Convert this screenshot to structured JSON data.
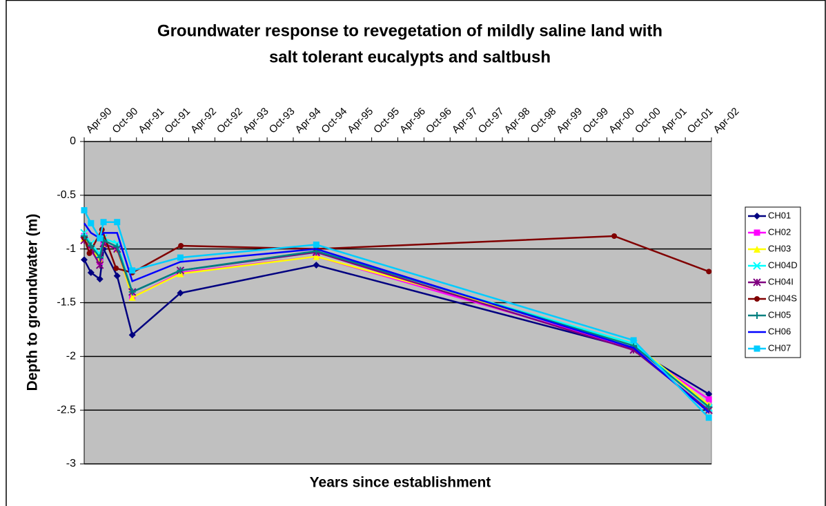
{
  "chart_data": {
    "type": "line",
    "title": [
      "Groundwater response to revegetation of mildly saline land with",
      "salt tolerant eucalypts and saltbush"
    ],
    "x_label": "Years since establishment",
    "y_label": "Depth to groundwater (m)",
    "xlim": [
      1990.25,
      2002.25
    ],
    "xticks": [
      {
        "value": 1990.25,
        "label": "Apr-90"
      },
      {
        "value": 1990.75,
        "label": "Oct-90"
      },
      {
        "value": 1991.25,
        "label": "Apr-91"
      },
      {
        "value": 1991.75,
        "label": "Oct-91"
      },
      {
        "value": 1992.25,
        "label": "Apr-92"
      },
      {
        "value": 1992.75,
        "label": "Oct-92"
      },
      {
        "value": 1993.25,
        "label": "Apr-93"
      },
      {
        "value": 1993.75,
        "label": "Oct-93"
      },
      {
        "value": 1994.25,
        "label": "Apr-94"
      },
      {
        "value": 1994.75,
        "label": "Oct-94"
      },
      {
        "value": 1995.25,
        "label": "Apr-95"
      },
      {
        "value": 1995.75,
        "label": "Oct-95"
      },
      {
        "value": 1996.25,
        "label": "Apr-96"
      },
      {
        "value": 1996.75,
        "label": "Oct-96"
      },
      {
        "value": 1997.25,
        "label": "Apr-97"
      },
      {
        "value": 1997.75,
        "label": "Oct-97"
      },
      {
        "value": 1998.25,
        "label": "Apr-98"
      },
      {
        "value": 1998.75,
        "label": "Oct-98"
      },
      {
        "value": 1999.25,
        "label": "Apr-99"
      },
      {
        "value": 1999.75,
        "label": "Oct-99"
      },
      {
        "value": 2000.25,
        "label": "Apr-00"
      },
      {
        "value": 2000.75,
        "label": "Oct-00"
      },
      {
        "value": 2001.25,
        "label": "Apr-01"
      },
      {
        "value": 2001.75,
        "label": "Oct-01"
      },
      {
        "value": 2002.25,
        "label": "Apr-02"
      }
    ],
    "ylim": [
      -3,
      0
    ],
    "yticks": [
      0,
      -0.5,
      -1,
      -1.5,
      -2,
      -2.5,
      -3
    ],
    "grid": true,
    "legend": "right",
    "series": [
      {
        "name": "CH01",
        "color": "#000080",
        "marker": "diamond",
        "x": [
          1990.25,
          1990.38,
          1990.55,
          1990.62,
          1990.88,
          1991.17,
          1992.09,
          1994.69,
          2000.76,
          2002.2
        ],
        "values": [
          -1.1,
          -1.22,
          -1.28,
          -1.0,
          -1.25,
          -1.8,
          -1.41,
          -1.15,
          -1.93,
          -2.35
        ]
      },
      {
        "name": "CH02",
        "color": "#ff00ff",
        "marker": "square",
        "x": [
          1990.25,
          1990.38,
          1990.55,
          1990.62,
          1990.88,
          1991.17,
          1992.09,
          1994.69,
          2000.76,
          2002.2
        ],
        "values": [
          -0.88,
          -1.02,
          -1.12,
          -0.95,
          -1.0,
          -1.45,
          -1.22,
          -1.07,
          -1.92,
          -2.4
        ]
      },
      {
        "name": "CH03",
        "color": "#ffff00",
        "marker": "triangle",
        "x": [
          1990.25,
          1990.38,
          1990.55,
          1990.62,
          1990.88,
          1991.17,
          1992.09,
          1994.69,
          2000.76,
          2002.2
        ],
        "values": [
          -0.9,
          -1.0,
          -1.1,
          -0.95,
          -1.0,
          -1.45,
          -1.23,
          -1.07,
          -1.88,
          -2.45
        ]
      },
      {
        "name": "CH04D",
        "color": "#00ffff",
        "marker": "x",
        "x": [
          1990.25,
          1990.38,
          1990.55,
          1990.62,
          1990.88,
          1991.17,
          1992.09,
          1994.69,
          2000.76,
          2002.2
        ],
        "values": [
          -0.85,
          -0.95,
          -1.05,
          -0.9,
          -0.95,
          -1.4,
          -1.2,
          -1.03,
          -1.88,
          -2.48
        ]
      },
      {
        "name": "CH04I",
        "color": "#800080",
        "marker": "star",
        "x": [
          1990.25,
          1990.38,
          1990.55,
          1990.62,
          1990.88,
          1991.17,
          1992.09,
          1994.69,
          2000.76,
          2002.2
        ],
        "values": [
          -0.92,
          -1.0,
          -1.15,
          -0.95,
          -1.0,
          -1.4,
          -1.2,
          -1.03,
          -1.94,
          -2.5
        ]
      },
      {
        "name": "CH04S",
        "color": "#800000",
        "marker": "circle",
        "x": [
          1990.25,
          1990.35,
          1990.59,
          1990.86,
          1991.17,
          1992.1,
          1994.69,
          2000.39,
          2002.2
        ],
        "values": [
          -0.9,
          -1.04,
          -0.82,
          -1.18,
          -1.22,
          -0.97,
          -1.0,
          -0.88,
          -1.21
        ]
      },
      {
        "name": "CH05",
        "color": "#008080",
        "marker": "plus",
        "x": [
          1990.25,
          1990.38,
          1990.55,
          1990.62,
          1990.88,
          1991.17,
          1992.09,
          1994.69,
          2000.76,
          2002.2
        ],
        "values": [
          -0.88,
          -0.97,
          -1.08,
          -0.92,
          -0.98,
          -1.4,
          -1.2,
          -1.02,
          -1.9,
          -2.47
        ]
      },
      {
        "name": "CH06",
        "color": "#0000ff",
        "marker": "none",
        "x": [
          1990.25,
          1990.38,
          1990.55,
          1990.62,
          1990.88,
          1991.17,
          1992.09,
          1994.69,
          2000.76,
          2002.2
        ],
        "values": [
          -0.76,
          -0.85,
          -0.9,
          -0.85,
          -0.85,
          -1.3,
          -1.12,
          -1.0,
          -1.92,
          -2.52
        ]
      },
      {
        "name": "CH07",
        "color": "#00ccff",
        "marker": "square",
        "x": [
          1990.25,
          1990.38,
          1990.55,
          1990.62,
          1990.88,
          1991.17,
          1992.09,
          1994.69,
          2000.76,
          2002.2
        ],
        "values": [
          -0.64,
          -0.76,
          -0.9,
          -0.75,
          -0.75,
          -1.2,
          -1.08,
          -0.96,
          -1.85,
          -2.57
        ]
      }
    ]
  }
}
